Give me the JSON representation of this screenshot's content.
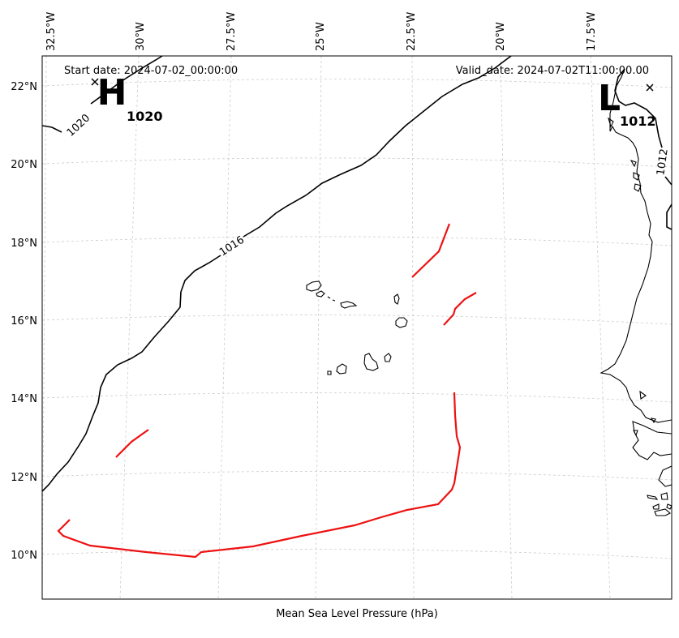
{
  "map": {
    "start_date": "Start date: 2024-07-02_00:00:00",
    "valid_date": "Valid_date: 2024-07-02T11:00:00.00",
    "xlabel": "Mean Sea Level Pressure (hPa)",
    "lon_ticks": [
      "32.5°W",
      "30°W",
      "27.5°W",
      "25°W",
      "22.5°W",
      "20°W",
      "17.5°W"
    ],
    "lat_ticks": [
      "22°N",
      "20°N",
      "18°N",
      "16°N",
      "14°N",
      "12°N",
      "10°N"
    ],
    "high": {
      "letter": "H",
      "value": "1020"
    },
    "low": {
      "letter": "L",
      "value": "1012"
    },
    "isobars": [
      {
        "label": "1020"
      },
      {
        "label": "1016"
      },
      {
        "label": "1012"
      }
    ],
    "colors": {
      "isobar": "#000000",
      "front": "#ee1111",
      "grid": "#cccccc",
      "coast": "#000000"
    }
  }
}
